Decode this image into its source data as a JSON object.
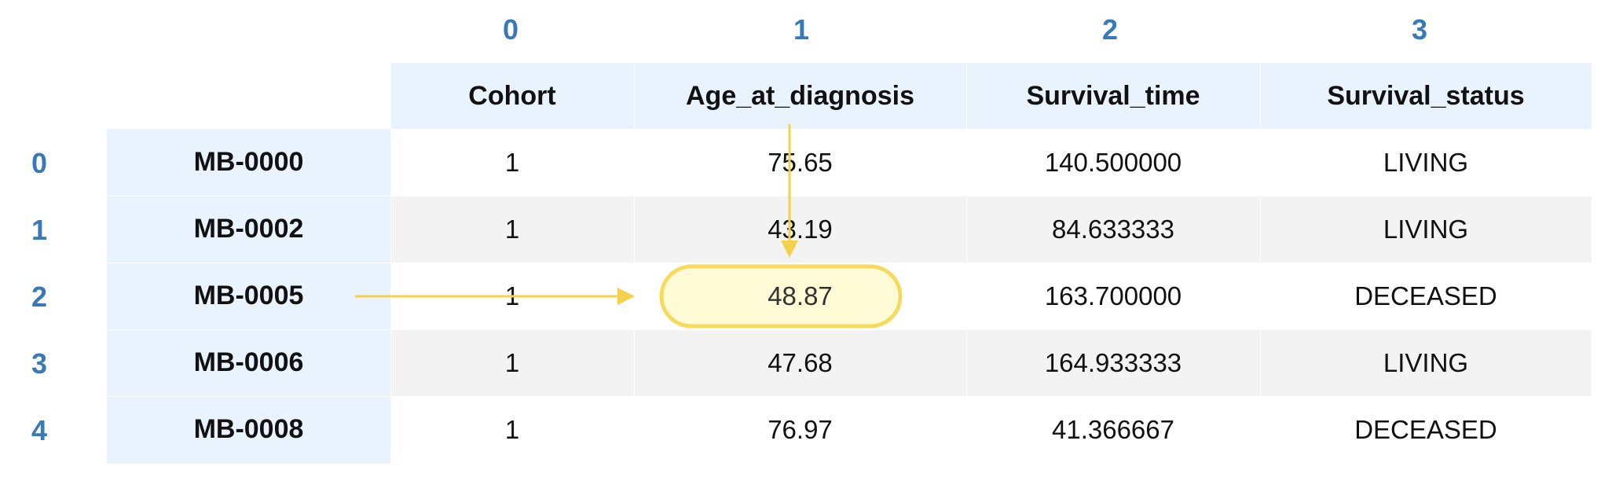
{
  "column_positions": [
    "0",
    "1",
    "2",
    "3"
  ],
  "row_positions": [
    "0",
    "1",
    "2",
    "3",
    "4"
  ],
  "columns": [
    "Cohort",
    "Age_at_diagnosis",
    "Survival_time",
    "Survival_status"
  ],
  "index": [
    "MB-0000",
    "MB-0002",
    "MB-0005",
    "MB-0006",
    "MB-0008"
  ],
  "rows": [
    [
      "1",
      "75.65",
      "140.500000",
      "LIVING"
    ],
    [
      "1",
      "43.19",
      "84.633333",
      "LIVING"
    ],
    [
      "1",
      "48.87",
      "163.700000",
      "DECEASED"
    ],
    [
      "1",
      "47.68",
      "164.933333",
      "LIVING"
    ],
    [
      "1",
      "76.97",
      "41.366667",
      "DECEASED"
    ]
  ],
  "highlight": {
    "row": 2,
    "col": 1
  },
  "colors": {
    "position_label": "#3a79b8",
    "header_bg": "#e8f3fd",
    "stripe": "#f3f3f3",
    "highlight_fill": "#fffbd6",
    "highlight_stroke": "#f7da5c",
    "arrow": "#f5d04a"
  }
}
